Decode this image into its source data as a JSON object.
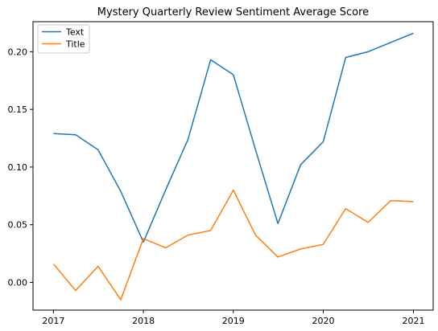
{
  "chart_data": {
    "type": "line",
    "title": "Mystery Quarterly Review Sentiment Average Score",
    "xlabel": "",
    "ylabel": "",
    "x": [
      "2017-01-01",
      "2017-04-01",
      "2017-07-01",
      "2017-10-01",
      "2018-01-01",
      "2018-04-01",
      "2018-07-01",
      "2018-10-01",
      "2019-01-01",
      "2019-04-01",
      "2019-07-01",
      "2019-10-01",
      "2020-01-01",
      "2020-04-01",
      "2020-07-01",
      "2020-10-01",
      "2021-01-01"
    ],
    "xticks": [
      "2017",
      "2018",
      "2019",
      "2020",
      "2021"
    ],
    "xlim": [
      "2016-10-10",
      "2021-03-22"
    ],
    "ylim": [
      -0.024,
      0.226
    ],
    "yticks": [
      "0.00",
      "0.05",
      "0.10",
      "0.15",
      "0.20"
    ],
    "grid": false,
    "legend_position": "top-left",
    "series": [
      {
        "name": "Text",
        "color": "#1f77b4",
        "values": [
          0.129,
          0.128,
          0.115,
          0.079,
          0.035,
          0.08,
          0.124,
          0.193,
          0.18,
          0.115,
          0.051,
          0.102,
          0.122,
          0.195,
          0.2,
          0.208,
          0.216
        ]
      },
      {
        "name": "Title",
        "color": "#ff7f0e",
        "values": [
          0.016,
          -0.007,
          0.014,
          -0.015,
          0.038,
          0.03,
          0.041,
          0.045,
          0.08,
          0.041,
          0.022,
          0.029,
          0.033,
          0.064,
          0.052,
          0.071,
          0.07
        ]
      }
    ]
  }
}
